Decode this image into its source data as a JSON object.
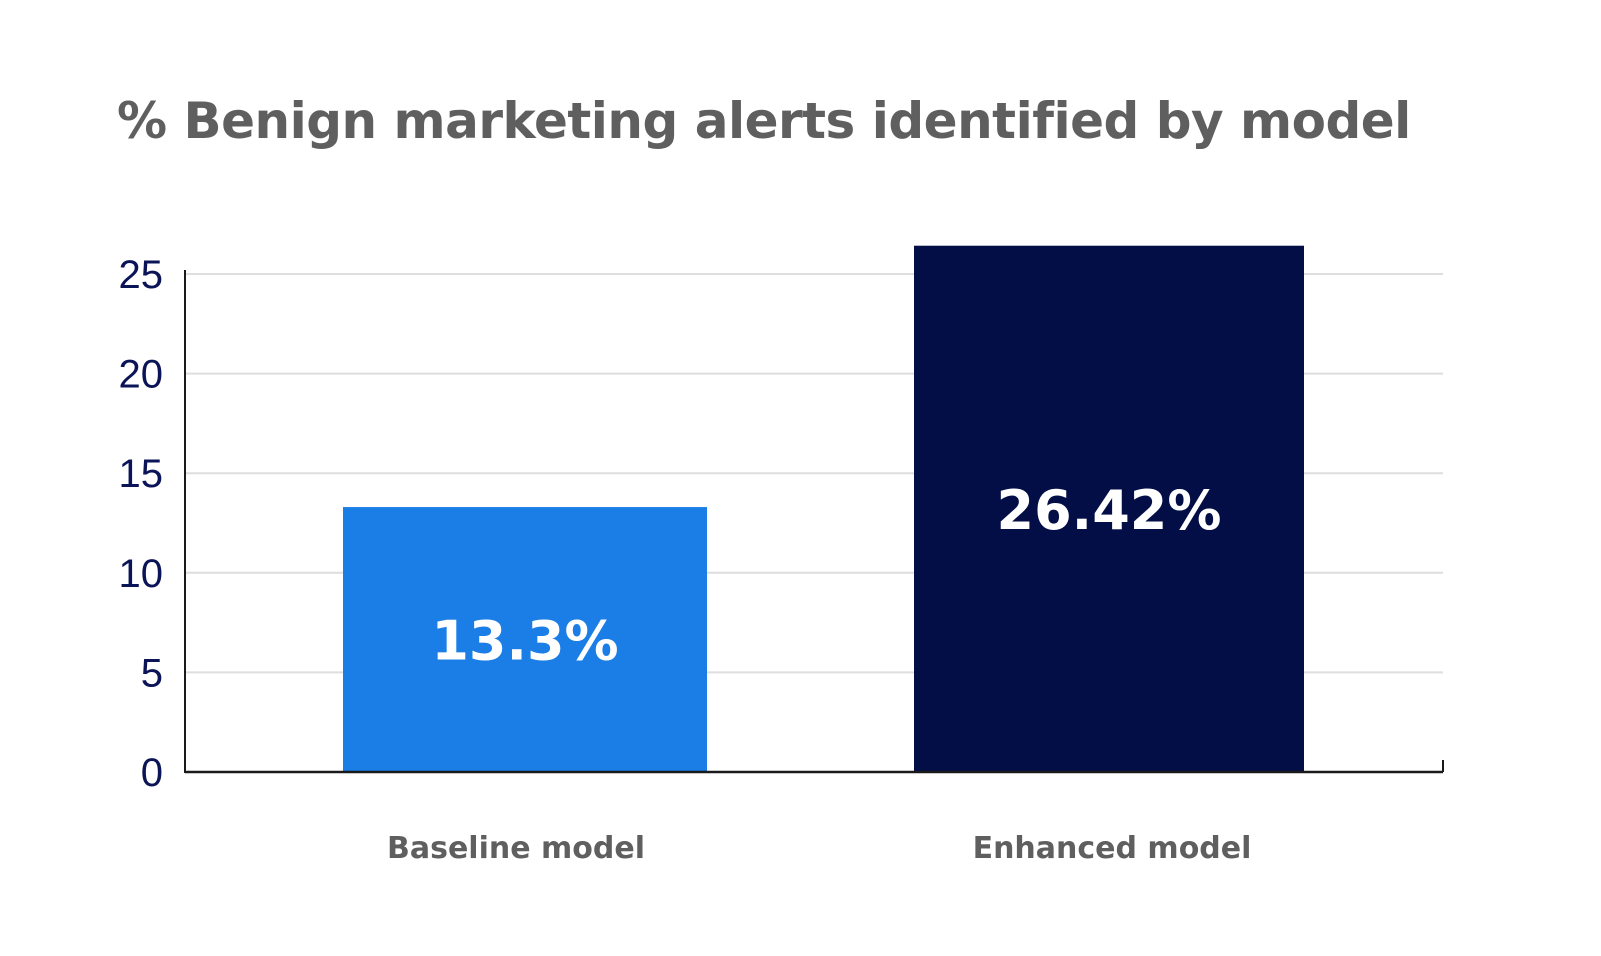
{
  "chart_data": {
    "type": "bar",
    "title": "% Benign marketing alerts identified by model",
    "xlabel": "",
    "ylabel": "",
    "categories": [
      "Baseline model",
      "Enhanced model"
    ],
    "values": [
      13.3,
      26.42
    ],
    "data_labels": [
      "13.3%",
      "26.42%"
    ],
    "colors": [
      "#1a7ee6",
      "#030e46"
    ],
    "ylim": [
      0,
      25
    ],
    "yticks": [
      "0",
      "5",
      "10",
      "15",
      "20",
      "25"
    ],
    "grid": true,
    "legend": "none"
  }
}
